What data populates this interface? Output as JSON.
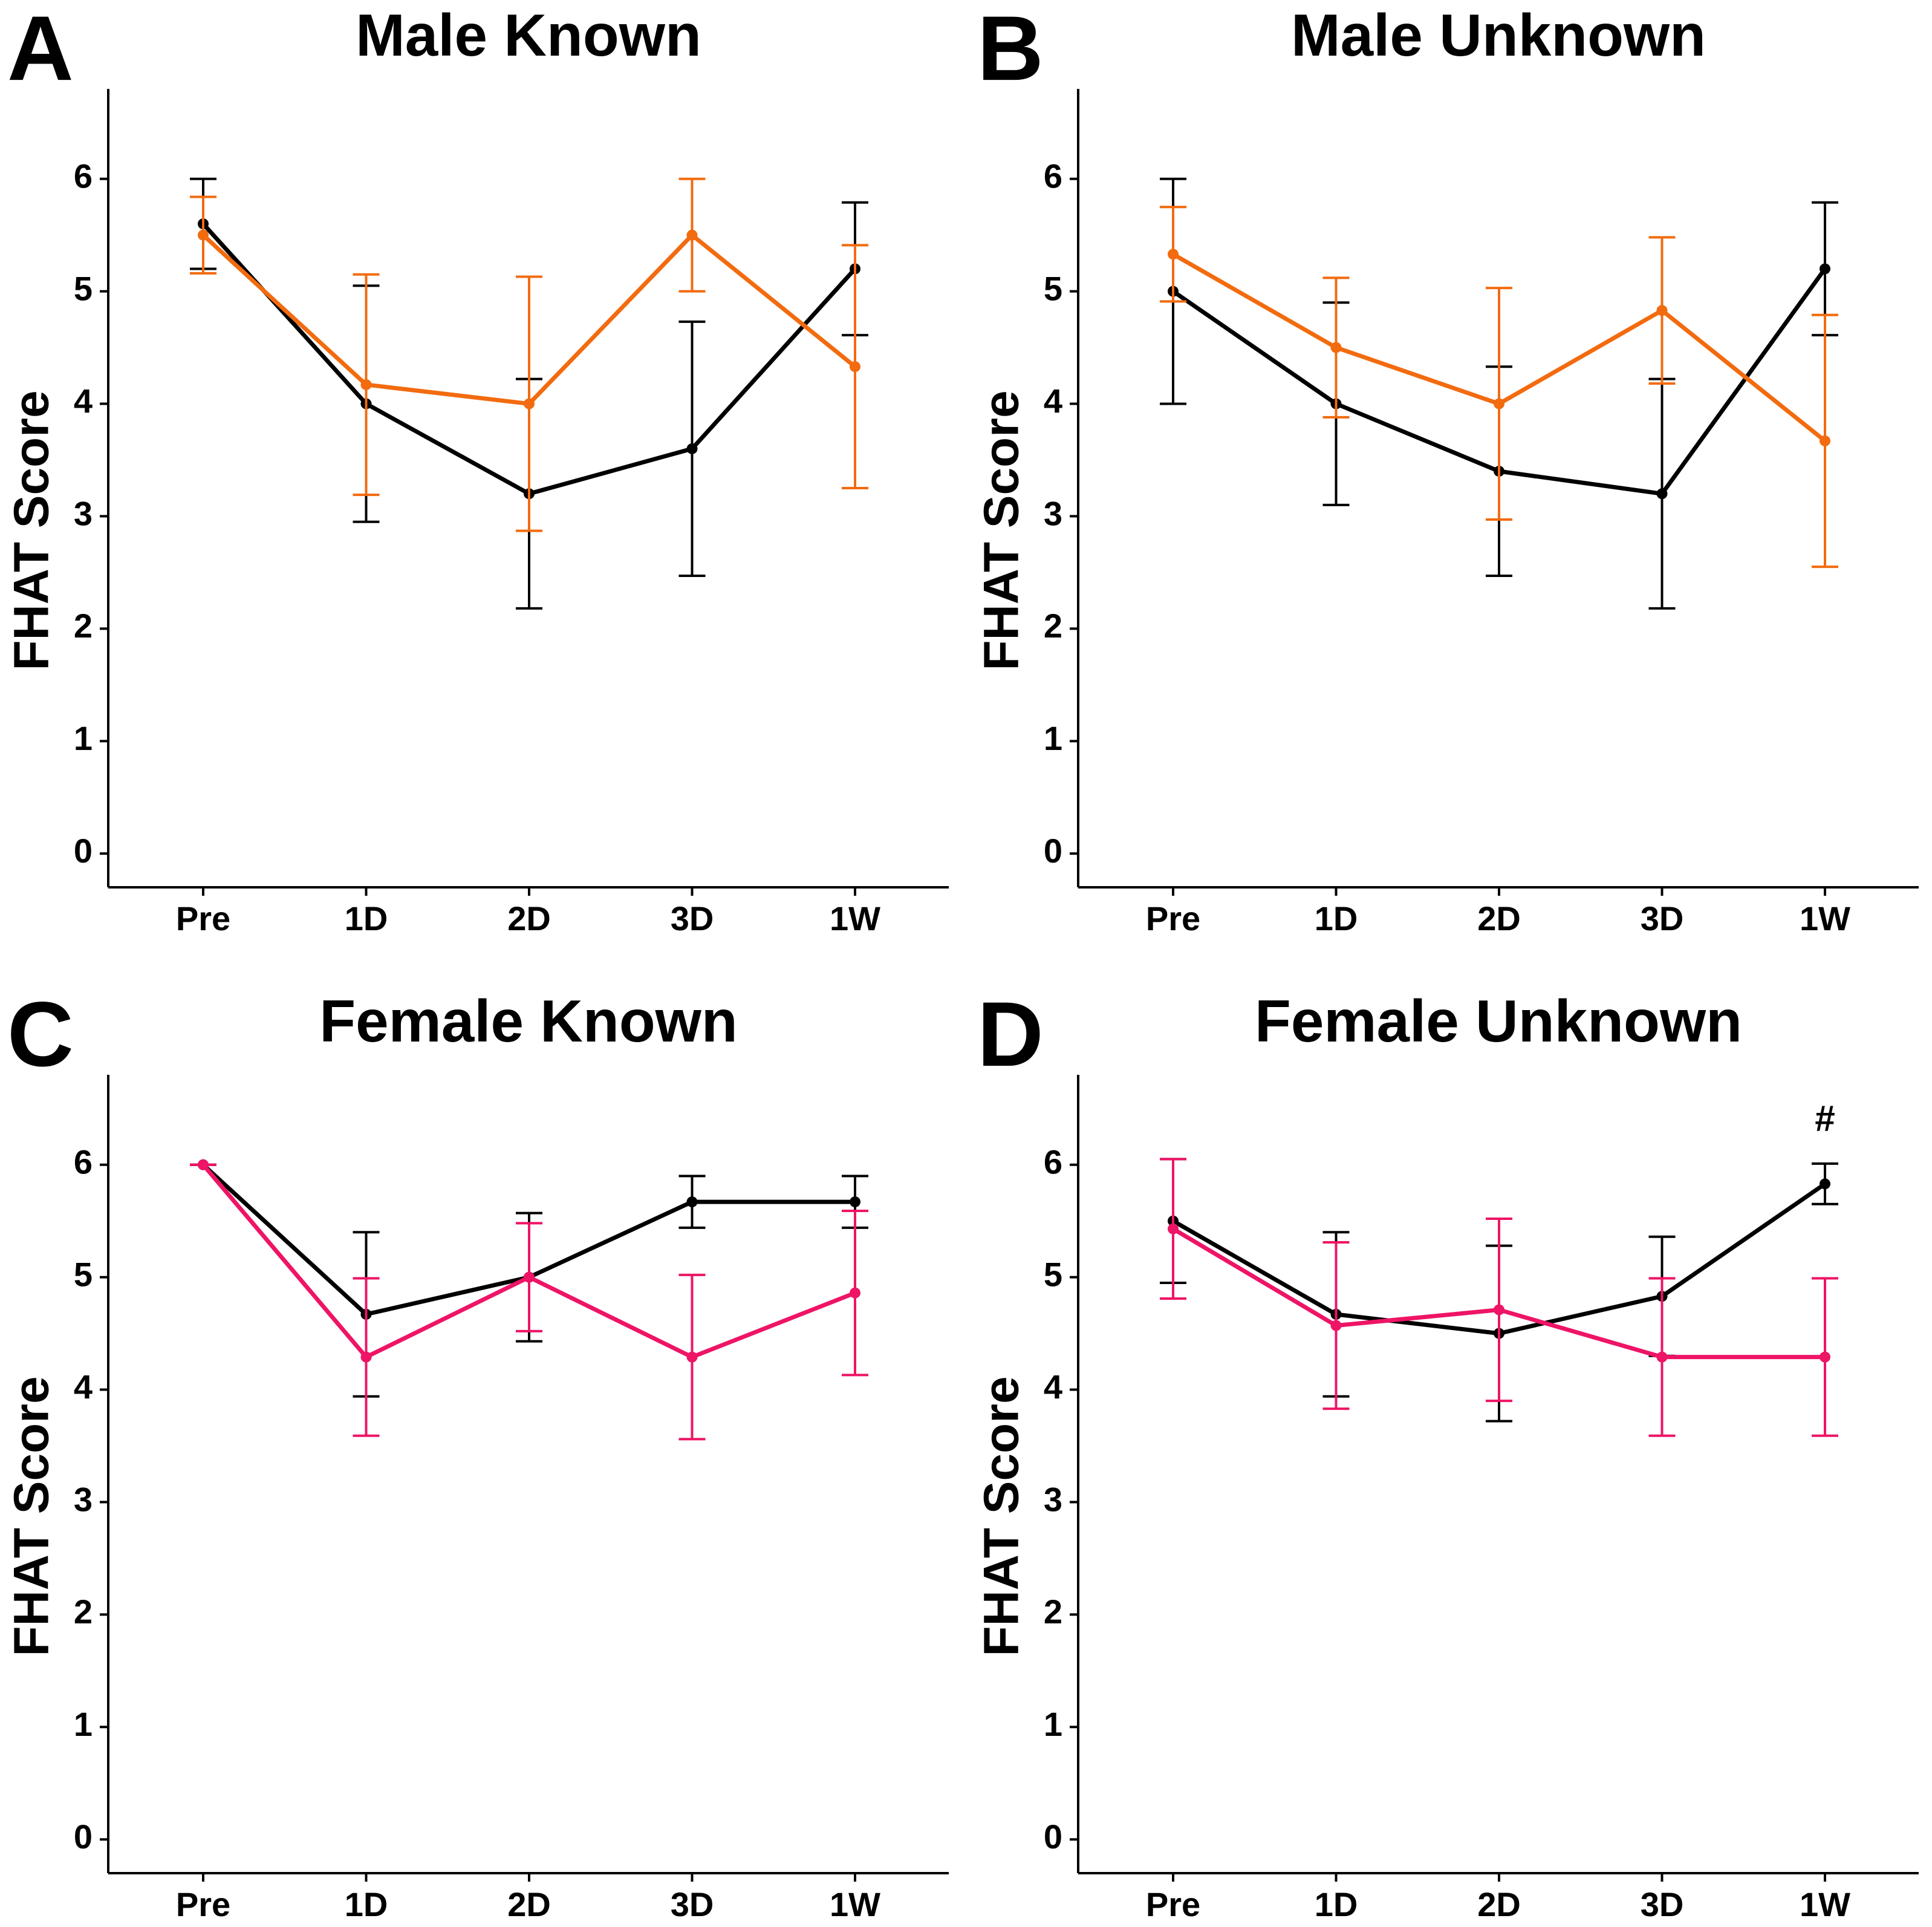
{
  "chart_data": [
    {
      "type": "line",
      "panel_label": "A",
      "title": "Male Known",
      "y_label": "FHAT Score",
      "categories": [
        "Pre",
        "1D",
        "2D",
        "3D",
        "1W"
      ],
      "series": [
        {
          "color": "#000000",
          "values": [
            5.6,
            4.0,
            3.2,
            3.6,
            5.2
          ],
          "errors": [
            0.4,
            1.05,
            1.02,
            1.13,
            0.59
          ]
        },
        {
          "color": "#f26b0f",
          "values": [
            5.5,
            4.17,
            4.0,
            5.5,
            4.33
          ],
          "errors": [
            0.34,
            0.98,
            1.13,
            0.5,
            1.08
          ]
        }
      ],
      "ylim": [
        -0.3,
        6.8
      ],
      "yticks": [
        0,
        1,
        2,
        3,
        4,
        5,
        6
      ]
    },
    {
      "type": "line",
      "panel_label": "B",
      "title": "Male Unknown",
      "y_label": "FHAT Score",
      "categories": [
        "Pre",
        "1D",
        "2D",
        "3D",
        "1W"
      ],
      "series": [
        {
          "color": "#000000",
          "values": [
            5.0,
            4.0,
            3.4,
            3.2,
            5.2
          ],
          "errors": [
            1.0,
            0.9,
            0.93,
            1.02,
            0.59
          ]
        },
        {
          "color": "#f26b0f",
          "values": [
            5.33,
            4.5,
            4.0,
            4.83,
            3.67
          ],
          "errors": [
            0.42,
            0.62,
            1.03,
            0.65,
            1.12
          ]
        }
      ],
      "ylim": [
        -0.3,
        6.8
      ],
      "yticks": [
        0,
        1,
        2,
        3,
        4,
        5,
        6
      ]
    },
    {
      "type": "line",
      "panel_label": "C",
      "title": "Female Known",
      "y_label": "FHAT Score",
      "categories": [
        "Pre",
        "1D",
        "2D",
        "3D",
        "1W"
      ],
      "series": [
        {
          "color": "#000000",
          "values": [
            6.0,
            4.67,
            5.0,
            5.67,
            5.67
          ],
          "errors": [
            0,
            0.73,
            0.57,
            0.23,
            0.23
          ]
        },
        {
          "color": "#ee1466",
          "values": [
            6.0,
            4.29,
            5.0,
            4.29,
            4.86
          ],
          "errors": [
            0,
            0.7,
            0.48,
            0.73,
            0.73
          ]
        }
      ],
      "ylim": [
        -0.3,
        6.8
      ],
      "yticks": [
        0,
        1,
        2,
        3,
        4,
        5,
        6
      ]
    },
    {
      "type": "line",
      "panel_label": "D",
      "title": "Female Unknown",
      "y_label": "FHAT Score",
      "categories": [
        "Pre",
        "1D",
        "2D",
        "3D",
        "1W"
      ],
      "series": [
        {
          "color": "#000000",
          "values": [
            5.5,
            4.67,
            4.5,
            4.83,
            5.83
          ],
          "errors": [
            0.55,
            0.73,
            0.78,
            0.53,
            0.18
          ]
        },
        {
          "color": "#ee1466",
          "values": [
            5.43,
            4.57,
            4.71,
            4.29,
            4.29
          ],
          "errors": [
            0.62,
            0.74,
            0.81,
            0.7,
            0.7
          ]
        }
      ],
      "ylim": [
        -0.3,
        6.8
      ],
      "yticks": [
        0,
        1,
        2,
        3,
        4,
        5,
        6
      ],
      "annotation": "#"
    }
  ]
}
